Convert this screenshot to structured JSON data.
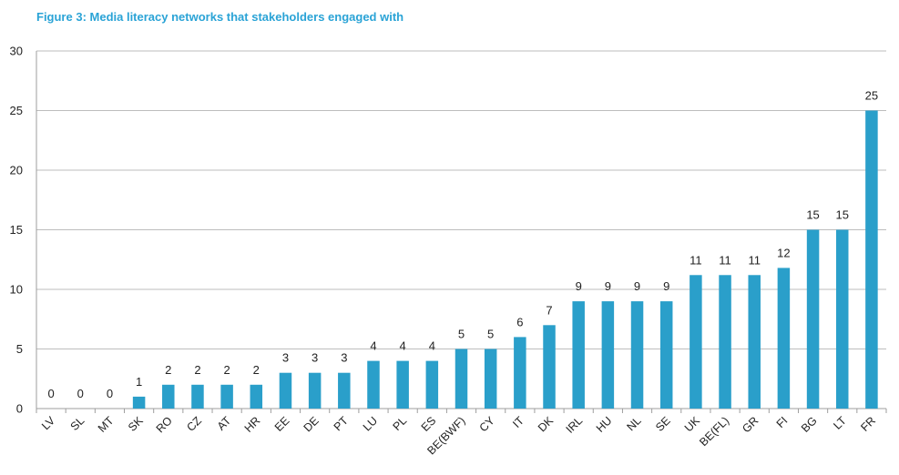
{
  "chart_data": {
    "type": "bar",
    "title": "Figure 3: Media literacy networks that stakeholders engaged with",
    "xlabel": "",
    "ylabel": "",
    "ylim": [
      0,
      30
    ],
    "yticks": [
      0,
      5,
      10,
      15,
      20,
      25,
      30
    ],
    "grid": true,
    "bar_color": "#2a9fca",
    "title_color": "#2aa3d6",
    "categories": [
      "LV",
      "SL",
      "MT",
      "SK",
      "RO",
      "CZ",
      "AT",
      "HR",
      "EE",
      "DE",
      "PT",
      "LU",
      "PL",
      "ES",
      "BE(BWF)",
      "CY",
      "IT",
      "DK",
      "IRL",
      "HU",
      "NL",
      "SE",
      "UK",
      "BE(FL)",
      "GR",
      "FI",
      "BG",
      "LT",
      "FR"
    ],
    "values": [
      0,
      0,
      0,
      1,
      2,
      2,
      2,
      2,
      3,
      3,
      3,
      4,
      4,
      4,
      5,
      5,
      6,
      7,
      9,
      9,
      9,
      9,
      11.2,
      11.2,
      11.2,
      11.8,
      15,
      15,
      25
    ],
    "data_labels": [
      "0",
      "0",
      "0",
      "1",
      "2",
      "2",
      "2",
      "2",
      "3",
      "3",
      "3",
      "4",
      "4",
      "4",
      "5",
      "5",
      "6",
      "7",
      "9",
      "9",
      "9",
      "9",
      "11",
      "11",
      "11",
      "12",
      "15",
      "15",
      "25"
    ]
  }
}
